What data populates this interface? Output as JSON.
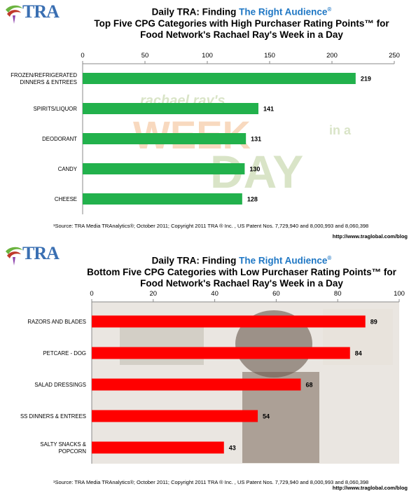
{
  "brand": {
    "logo_text": "TRA"
  },
  "top": {
    "heading_line1_prefix": "Daily TRA: Finding ",
    "heading_line1_highlight": "The Right Audience",
    "heading_line1_mark": "®",
    "heading_line2": "Top Five CPG Categories with High Purchaser Rating Points™ for",
    "heading_line3": "Food Network's Rachael Ray's Week in a Day",
    "source": "¹Source: TRA Media TRAnalytics®; October 2011; Copyright 2011 TRA ® Inc. , US Patent Nos. 7,729,940 and 8,000,993 and 8,060,398",
    "blog": "http://www.traglobal.com/blog",
    "bg_words": [
      "rachael ray's",
      "WEEK",
      "in a",
      "DAY"
    ],
    "bar_color": "#22b14c"
  },
  "bottom": {
    "heading_line1_prefix": "Daily TRA: Finding ",
    "heading_line1_highlight": "The Right Audience",
    "heading_line1_mark": "®",
    "heading_line2": "Bottom Five CPG Categories with Low Purchaser Rating Points™ for",
    "heading_line3": "Food Network's Rachael Ray's Week in a Day",
    "source": "¹Source: TRA Media TRAnalytics®; October 2011; Copyright 2011 TRA ® Inc. , US Patent Nos. 7,729,940 and 8,000,993 and 8,060,398",
    "blog": "http://www.traglobal.com/blog",
    "bar_color": "#ff0000"
  },
  "chart_data": [
    {
      "type": "bar",
      "orientation": "horizontal",
      "title": "Top Five CPG Categories with High Purchaser Rating Points™ for Food Network's Rachael Ray's Week in a Day",
      "categories": [
        [
          "FROZEN/REFRIGERATED",
          "DINNERS & ENTREES"
        ],
        [
          "SPIRITS/LIQUOR"
        ],
        [
          "DEODORANT"
        ],
        [
          "CANDY"
        ],
        [
          "CHEESE"
        ]
      ],
      "values": [
        219,
        141,
        131,
        130,
        128
      ],
      "xlim": [
        0,
        250
      ],
      "xticks": [
        0,
        50,
        100,
        150,
        200,
        250
      ],
      "axis_position": "top",
      "grid": false
    },
    {
      "type": "bar",
      "orientation": "horizontal",
      "title": "Bottom Five CPG Categories with Low Purchaser Rating Points™ for Food Network's Rachael Ray's Week in a Day",
      "categories": [
        [
          "RAZORS AND BLADES"
        ],
        [
          "PETCARE - DOG"
        ],
        [
          "SALAD DRESSINGS"
        ],
        [
          "SS DINNERS & ENTREES"
        ],
        [
          "SALTY SNACKS &",
          "POPCORN"
        ]
      ],
      "values": [
        89,
        84,
        68,
        54,
        43
      ],
      "xlim": [
        0,
        100
      ],
      "xticks": [
        0,
        20,
        40,
        60,
        80,
        100
      ],
      "axis_position": "top",
      "grid": false
    }
  ]
}
